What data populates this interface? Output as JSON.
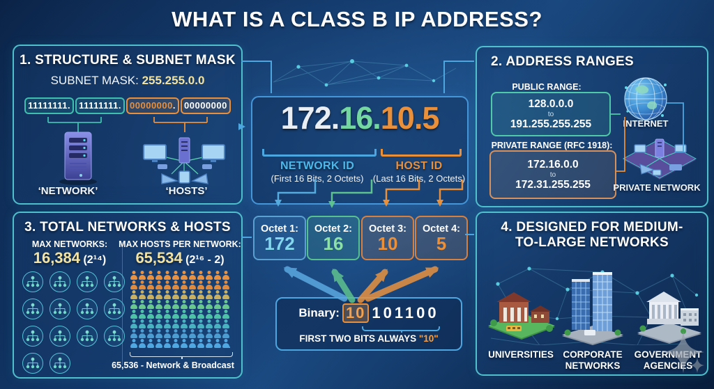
{
  "title": "WHAT IS A CLASS B IP ADDRESS?",
  "colors": {
    "teal_border": "#4fc0cc",
    "panel_fill": "rgba(27,64,112,0.35)",
    "yellow": "#f2e3a3",
    "green": "#74d6a0",
    "orange": "#ea8f3a",
    "blue": "#4da6e0",
    "cyan_value": "#84d6ee",
    "binary_teal": "#3fbfae"
  },
  "panel1": {
    "header": "1. STRUCTURE & SUBNET MASK",
    "subnet_label": "SUBNET MASK:",
    "subnet_value": "255.255.0.0",
    "binary_octet1": "11111111.",
    "binary_octet2": "11111111.",
    "binary_octet3": "00000000",
    "binary_octet3_dot": ".",
    "binary_octet4": "00000000",
    "network_label": "‘NETWORK’",
    "hosts_label": "‘HOSTS’"
  },
  "center": {
    "ip_part1": "172.",
    "ip_part2": "16.",
    "ip_part3": "10.",
    "ip_part4": "5",
    "network_id_title": "NETWORK ID",
    "network_id_sub": "(First 16 Bits, 2 Octets)",
    "host_id_title": "HOST ID",
    "host_id_sub": "(Last 16 Bits, 2 Octets)",
    "octets": [
      {
        "label": "Octet 1:",
        "value": "172"
      },
      {
        "label": "Octet 2:",
        "value": "16"
      },
      {
        "label": "Octet 3:",
        "value": "10"
      },
      {
        "label": "Octet 4:",
        "value": "5"
      }
    ],
    "binary_label": "Binary:",
    "binary_highlight": "10",
    "binary_rest": "101100",
    "binary_note_prefix": "FIRST TWO BITS ALWAYS ",
    "binary_note_value": "\"10\""
  },
  "panel2": {
    "header": "2. ADDRESS RANGES",
    "public_label": "PUBLIC RANGE:",
    "public_from": "128.0.0.0",
    "public_to_word": "to",
    "public_to": "191.255.255.255",
    "internet_label": "INTERNET",
    "private_label": "PRIVATE RANGE (RFC 1918):",
    "private_from": "172.16.0.0",
    "private_to_word": "to",
    "private_to": "172.31.255.255",
    "private_network_label": "PRIVATE NETWORK"
  },
  "panel3": {
    "header": "3. TOTAL NETWORKS & HOSTS",
    "max_networks_label": "MAX NETWORKS:",
    "max_networks_value": "16,384",
    "max_networks_formula": " (2¹⁴)",
    "max_hosts_label": "MAX HOSTS PER NETWORK:",
    "max_hosts_value": "65,534",
    "max_hosts_formula": " (2¹⁶ - 2)",
    "network_icon_rows": [
      4,
      4,
      4,
      2
    ],
    "hosts_grid_cols": 12,
    "hosts_grid_row_colors": [
      "#e89140",
      "#e08a3e",
      "#c8b060",
      "#68c88e",
      "#4ec2a6",
      "#48b2c0",
      "#4c9ed2",
      "#4fa8e2"
    ],
    "ellipsis": "...",
    "footnote": "65,536 - Network & Broadcast"
  },
  "panel4": {
    "header_line1": "4. DESIGNED FOR MEDIUM-",
    "header_line2": "TO-LARGE NETWORKS",
    "label_universities": "UNIVERSITIES",
    "label_corporate": "CORPORATE NETWORKS",
    "label_government": "GOVERNMENT AGENCIES"
  }
}
